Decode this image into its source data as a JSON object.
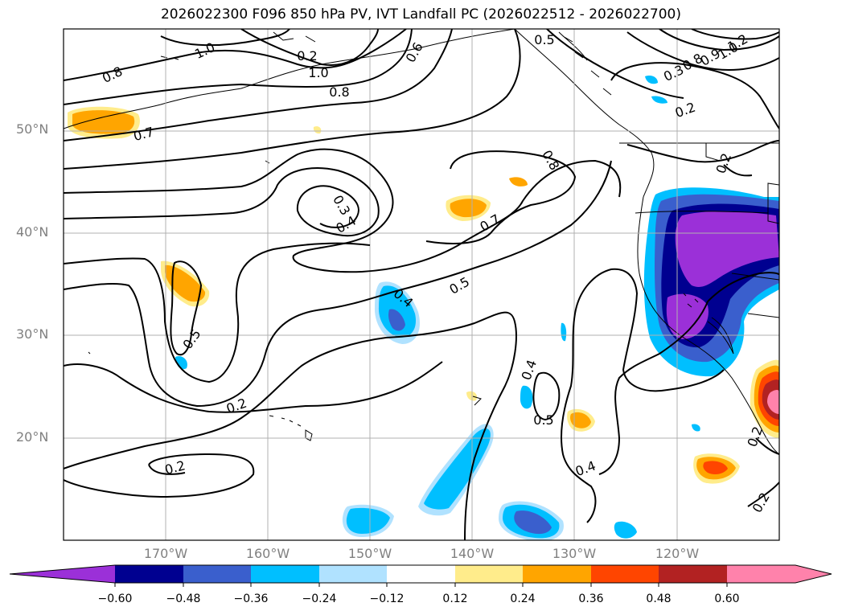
{
  "title": "2026022300 F096 850 hPa PV, IVT Landfall PC (2026022512 - 2026022700)",
  "lat_labels": [
    "50°N",
    "40°N",
    "30°N",
    "20°N"
  ],
  "lon_labels": [
    "170°W",
    "160°W",
    "150°W",
    "140°W",
    "130°W",
    "120°W"
  ],
  "map_extent": {
    "lon_min": -180,
    "lon_max": -110,
    "lat_min": 10,
    "lat_max": 60
  },
  "contour_labels": [
    "1.0",
    "0.8",
    "1.0",
    "0.8",
    "0.7",
    "0.6",
    "0.5",
    "0.3",
    "0.4",
    "0.8",
    "0.7",
    "0.5",
    "0.4",
    "0.5",
    "0.2",
    "0.2",
    "0.4",
    "0.5",
    "0.4",
    "0.2",
    "1.2",
    "1.0",
    "0.9",
    "0.8",
    "0.3",
    "0.2",
    "0.2",
    "0.2",
    "0.2"
  ],
  "colorbar": {
    "ticks": [
      "−0.60",
      "−0.48",
      "−0.36",
      "−0.24",
      "−0.12",
      "0.12",
      "0.24",
      "0.36",
      "0.48",
      "0.60"
    ],
    "colors": [
      "#9b30d8",
      "#000090",
      "#3a5fcd",
      "#00bfff",
      "#b0e2ff",
      "#ffffff",
      "#ffec8b",
      "#ffa500",
      "#ff4500",
      "#b22222",
      "#ff82ab",
      "#ff82ab"
    ]
  }
}
